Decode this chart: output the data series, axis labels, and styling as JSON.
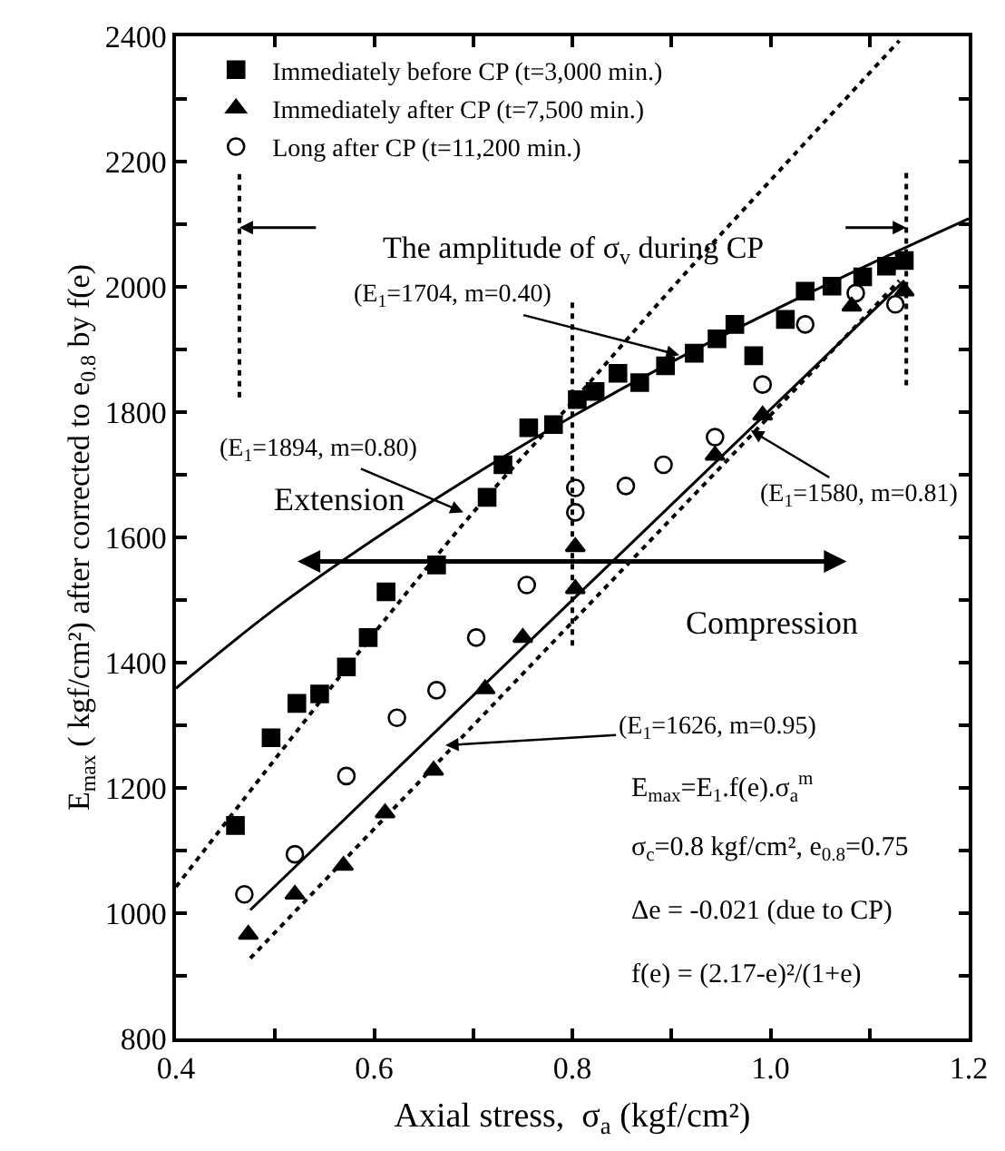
{
  "chart_data": {
    "type": "scatter",
    "xlabel": "Axial stress,  σ$_{a}$ (kgf/cm²)",
    "ylabel": "E$_{max}$ ( kgf/cm²) after corrected to e$_{0.8}$ by f(e)",
    "xlim": [
      0.4,
      1.2
    ],
    "xticks": [
      0.4,
      {
        "value": 0.5,
        "label": null
      },
      0.6,
      {
        "value": 0.7,
        "label": null
      },
      0.8,
      {
        "value": 0.9,
        "label": null
      },
      {
        "value": 1.0,
        "label": "1.0"
      },
      {
        "value": 1.1,
        "label": null
      },
      1.2
    ],
    "ylim": [
      800,
      2400
    ],
    "yticks": [
      800,
      {
        "value": 900,
        "label": null
      },
      1000,
      {
        "value": 1100,
        "label": null
      },
      1200,
      {
        "value": 1300,
        "label": null
      },
      1400,
      {
        "value": 1500,
        "label": null
      },
      1600,
      {
        "value": 1700,
        "label": null
      },
      1800,
      {
        "value": 1900,
        "label": null
      },
      2000,
      {
        "value": 2100,
        "label": null
      },
      2200,
      {
        "value": 2300,
        "label": null
      },
      2400
    ],
    "legend": "top left",
    "series": [
      {
        "name": "Immediately before CP (t=3,000 min.)",
        "color": "#000000",
        "marker": "square",
        "x": [
          0.46,
          0.496,
          0.522,
          0.545,
          0.572,
          0.594,
          0.612,
          0.663,
          0.714,
          0.73,
          0.756,
          0.781,
          0.805,
          0.823,
          0.846,
          0.868,
          0.894,
          0.923,
          0.946,
          0.964,
          0.983,
          1.015,
          1.035,
          1.062,
          1.093,
          1.117,
          1.135
        ],
        "values": [
          1140,
          1280,
          1335,
          1350,
          1393,
          1440,
          1513,
          1556,
          1664,
          1716,
          1775,
          1780,
          1820,
          1833,
          1862,
          1847,
          1874,
          1894,
          1917,
          1940,
          1890,
          1948,
          1993,
          2001,
          2016,
          2033,
          2042
        ]
      },
      {
        "name": "Immediately after CP (t=7,500 min.)",
        "color": "#000000",
        "marker": "triangle",
        "x": [
          0.473,
          0.52,
          0.569,
          0.611,
          0.66,
          0.712,
          0.75,
          0.803,
          0.803,
          0.944,
          0.992,
          1.082,
          1.135
        ],
        "values": [
          966,
          1030,
          1076,
          1160,
          1228,
          1358,
          1440,
          1518,
          1585,
          1731,
          1795,
          1969,
          1993
        ]
      },
      {
        "name": "Long after CP (t=11,200 min.)",
        "color": "#000000",
        "marker": "circle-open",
        "x": [
          0.469,
          0.52,
          0.572,
          0.623,
          0.663,
          0.703,
          0.754,
          0.803,
          0.803,
          0.854,
          0.892,
          0.944,
          0.992,
          1.035,
          1.086,
          1.126
        ],
        "values": [
          1030,
          1094,
          1219,
          1312,
          1356,
          1440,
          1524,
          1640,
          1679,
          1682,
          1716,
          1760,
          1844,
          1940,
          1990,
          1972
        ]
      },
      {
        "type": "line",
        "color": "#000000",
        "line_style": "solid",
        "marker": "none",
        "x": [
          0.4,
          0.5,
          0.6,
          0.7,
          0.8,
          0.9,
          1.0,
          1.1,
          1.2
        ],
        "values": [
          1359,
          1486,
          1597,
          1699,
          1793,
          1880,
          1960,
          2036,
          2109
        ]
      },
      {
        "type": "line",
        "color": "#000000",
        "line_style": "dotted",
        "marker": "none",
        "x": [
          0.4,
          0.5,
          0.6,
          0.7,
          0.8,
          0.9,
          1.0,
          1.13
        ],
        "values": [
          1042,
          1246,
          1447,
          1640,
          1816,
          1997,
          2170,
          2393
        ]
      },
      {
        "type": "line",
        "color": "#000000",
        "line_style": "solid",
        "marker": "none",
        "x": [
          0.475,
          1.135
        ],
        "values": [
          1005,
          2010
        ]
      },
      {
        "type": "line",
        "color": "#000000",
        "line_style": "dotted",
        "marker": "none",
        "x": [
          0.475,
          1.13
        ],
        "values": [
          928,
          2010
        ]
      },
      {
        "type": "line",
        "color": "#000000",
        "line_style": "dotted",
        "marker": "none",
        "x": [
          0.464,
          0.464
        ],
        "values": [
          2180,
          1818
        ]
      },
      {
        "type": "line",
        "color": "#000000",
        "line_style": "dotted",
        "marker": "none",
        "x": [
          0.8,
          0.8
        ],
        "values": [
          1975,
          1422
        ]
      },
      {
        "type": "line",
        "color": "#000000",
        "line_style": "dotted",
        "marker": "none",
        "x": [
          1.137,
          1.137
        ],
        "values": [
          2182,
          1838
        ]
      }
    ],
    "annotations": [
      "The amplitude of σ$_{v}$ during CP",
      {
        "text": "(E$_{1}$=1704, m=0.40)",
        "x": 0.908,
        "y": 1891
      },
      {
        "text": "(E$_{1}$=1894, m=0.80)",
        "x": 0.69,
        "y": 1640
      },
      {
        "text": "(E$_{1}$=1580, m=0.81)",
        "x": 0.98,
        "y": 1771
      },
      {
        "text": "(E$_{1}$=1626, m=0.95)",
        "x": 0.672,
        "y": 1268
      },
      "Extension",
      "Compression",
      "E$_{max}$=E$_{1}$.f(e).σ$_{a}$$^{m}$",
      "σ$_{c}$=0.8 kgf/cm², e$_{0.8}$=0.75",
      "Δe = -0.021 (due to CP)",
      "f(e) = (2.17-e)²/(1+e)"
    ]
  }
}
